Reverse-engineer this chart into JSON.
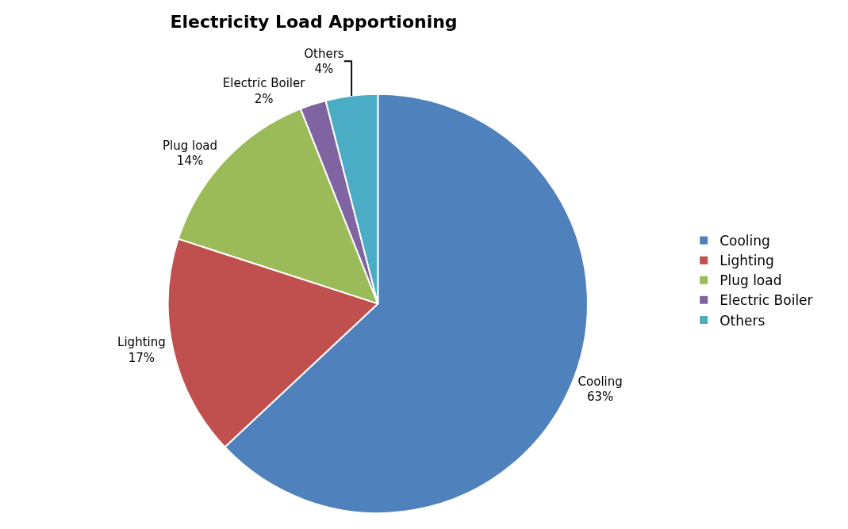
{
  "chart_data": {
    "type": "pie",
    "title": "Electricity Load Apportioning",
    "categories": [
      "Cooling",
      "Lighting",
      "Plug load",
      "Electric Boiler",
      "Others"
    ],
    "values": [
      63,
      17,
      14,
      2,
      4
    ],
    "value_labels": [
      "63%",
      "17%",
      "14%",
      "2%",
      "4%"
    ],
    "colors": [
      "#4f81bd",
      "#c0504d",
      "#9bbb59",
      "#8064a2",
      "#4bacc6"
    ],
    "legend": "right"
  }
}
